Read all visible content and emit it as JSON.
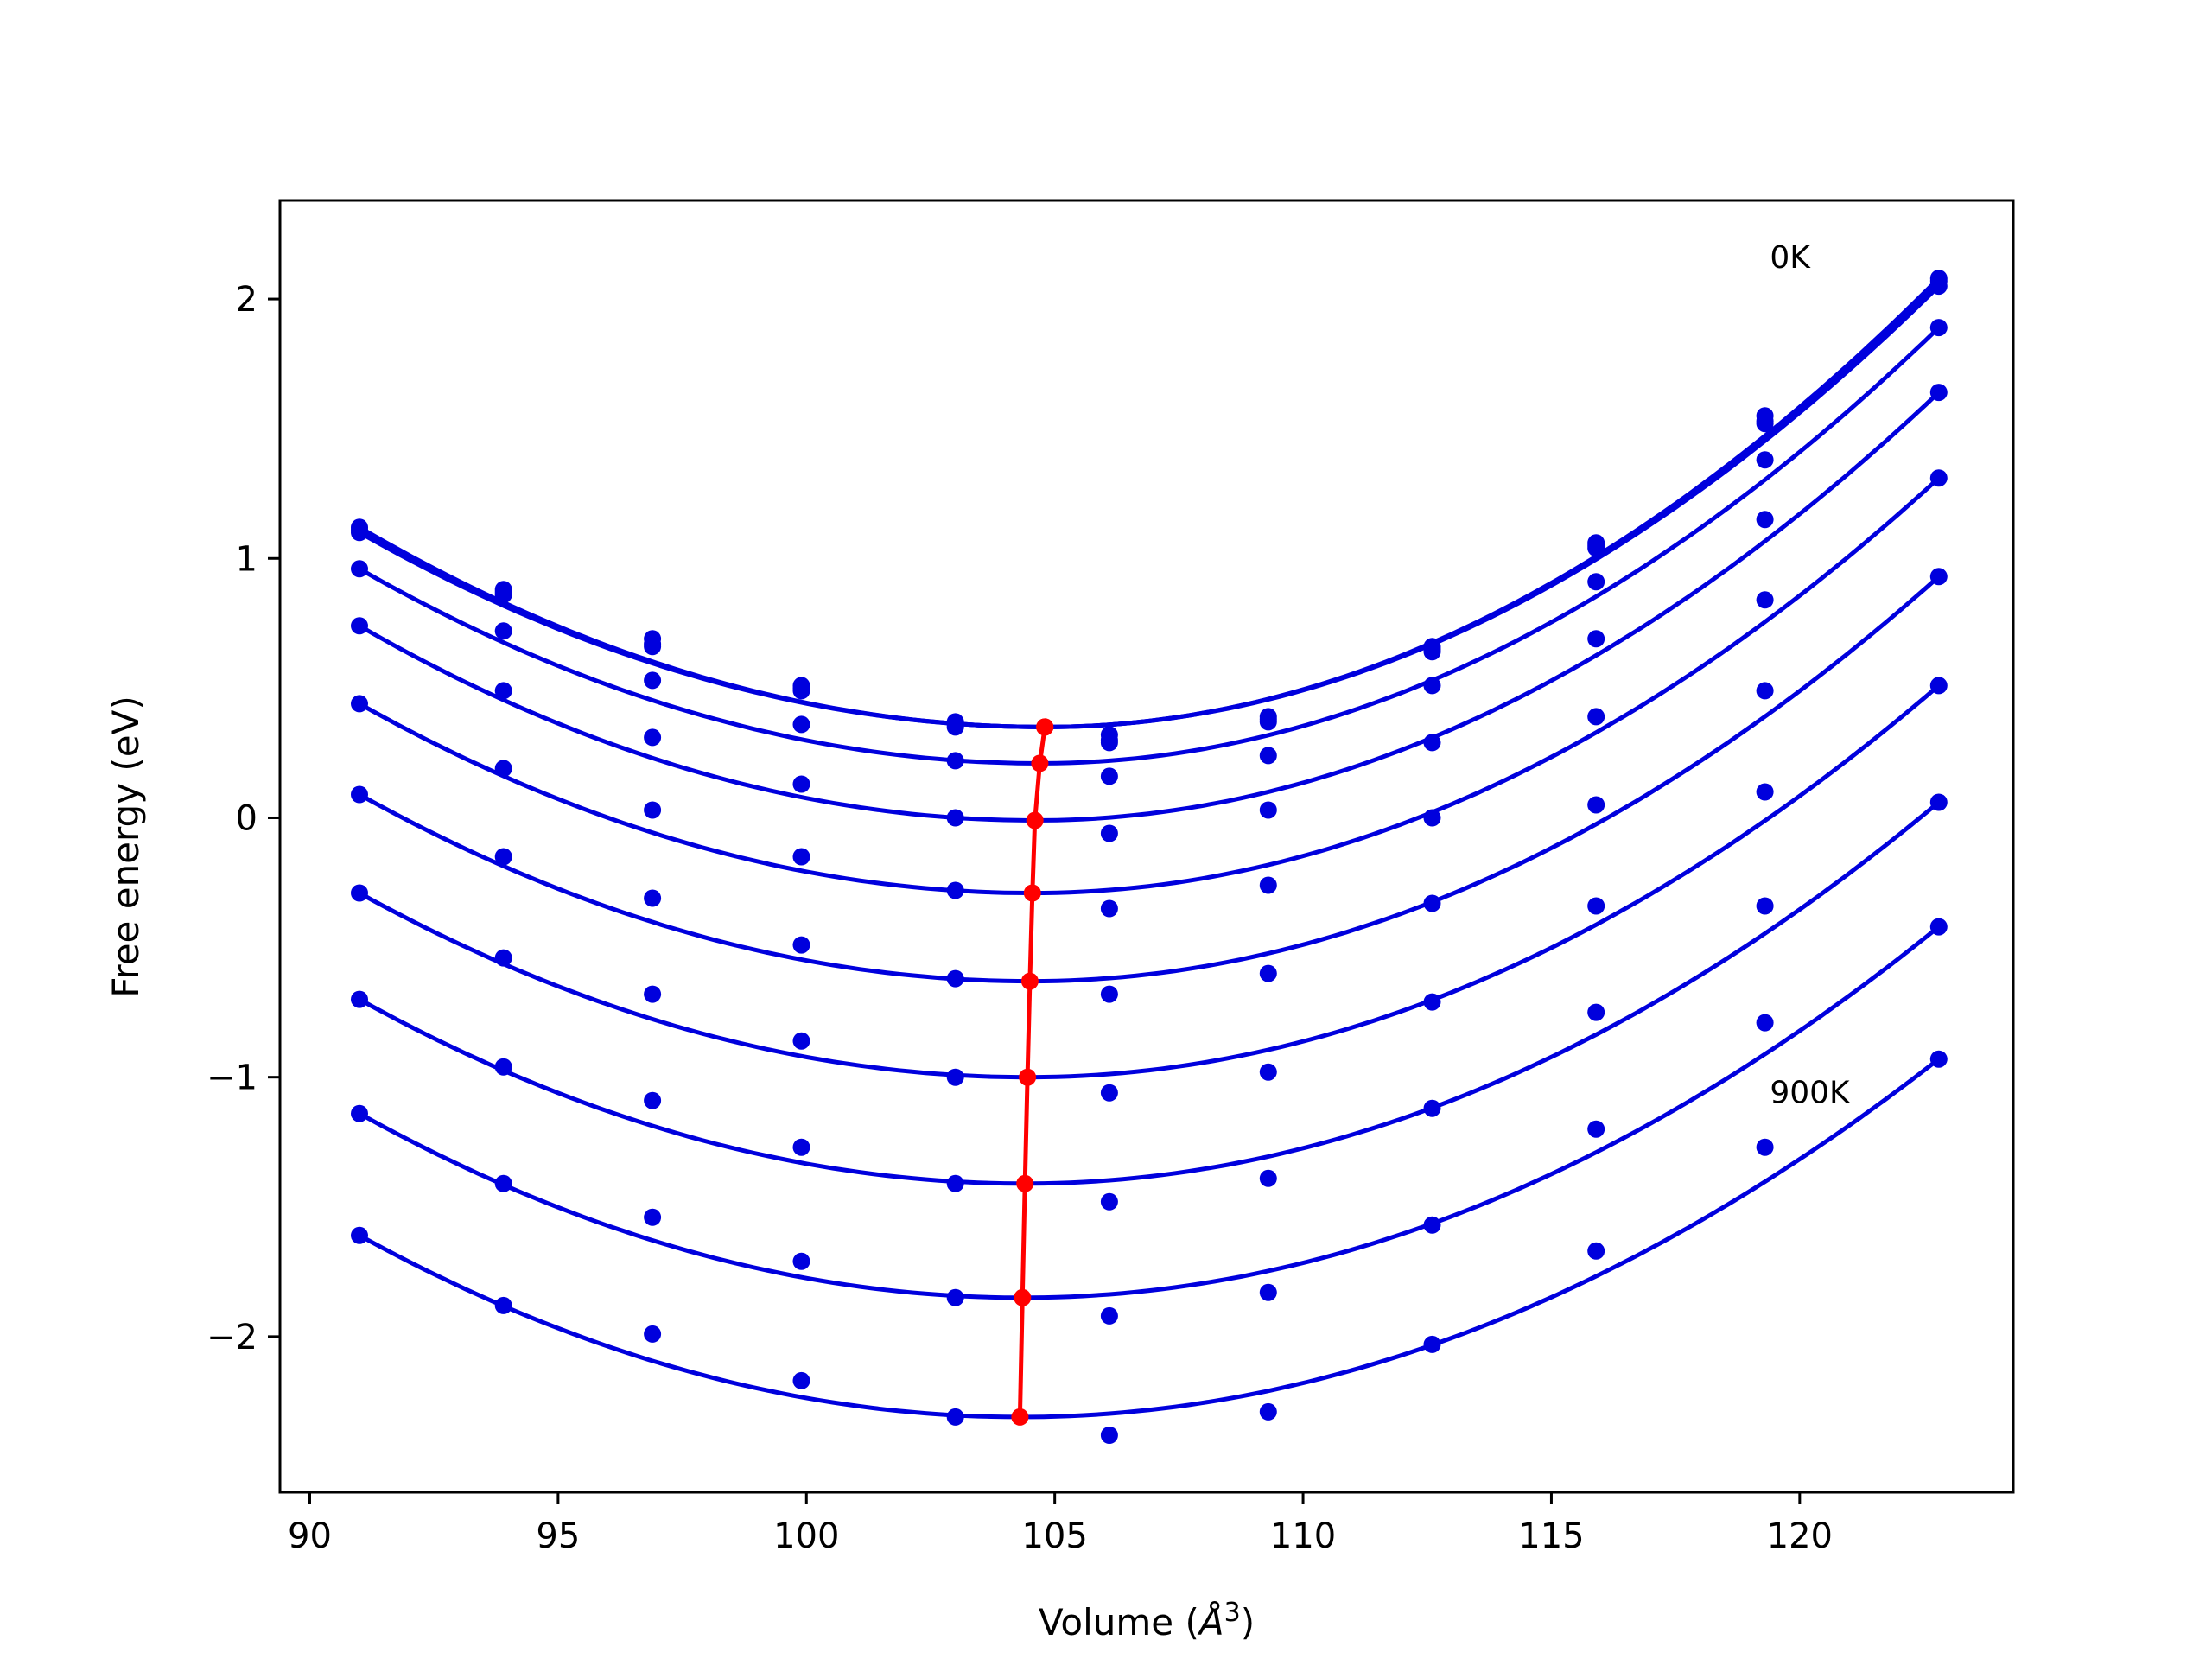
{
  "chart_data": {
    "type": "line",
    "xlabel": "Volume (",
    "xlabel_unit": "Å",
    "xlabel_exp": "3",
    "xlabel_close": ")",
    "ylabel": "Free energy (eV)",
    "xlim": [
      89.4,
      124.3
    ],
    "ylim": [
      -2.6,
      2.38
    ],
    "xticks": [
      90,
      95,
      100,
      105,
      110,
      115,
      120
    ],
    "yticks": [
      -2,
      -1,
      0,
      1,
      2
    ],
    "ytick_labels": [
      "−2",
      "−1",
      "0",
      "1",
      "2"
    ],
    "grid": false,
    "x": [
      91.0,
      93.9,
      96.9,
      99.9,
      103.0,
      106.1,
      109.3,
      112.6,
      115.9,
      119.3,
      122.8
    ],
    "annotations": [
      {
        "text": "0K",
        "x": 119.4,
        "y": 2.16
      },
      {
        "text": "900K",
        "x": 119.4,
        "y": -1.06
      }
    ],
    "curve_color": "#0000dd",
    "minimum_color": "#ff0000",
    "series": [
      {
        "x0": 104.8,
        "emin": 0.35,
        "points": [
          1.12,
          0.88,
          0.69,
          0.51,
          0.37,
          0.32,
          0.39,
          0.66,
          1.06,
          1.55,
          2.08
        ]
      },
      {
        "x0": 104.8,
        "emin": 0.35,
        "points": [
          1.11,
          0.87,
          0.67,
          0.5,
          0.36,
          0.3,
          0.37,
          0.65,
          1.05,
          1.53,
          2.07
        ]
      },
      {
        "x0": 104.8,
        "emin": 0.35,
        "points": [
          1.1,
          0.86,
          0.66,
          0.49,
          0.35,
          0.29,
          0.38,
          0.64,
          1.04,
          1.52,
          2.05
        ]
      },
      {
        "x0": 104.7,
        "emin": 0.21,
        "points": [
          0.96,
          0.72,
          0.53,
          0.36,
          0.22,
          0.16,
          0.24,
          0.51,
          0.91,
          1.38,
          1.89
        ]
      },
      {
        "x0": 104.6,
        "emin": -0.01,
        "points": [
          0.74,
          0.49,
          0.31,
          0.13,
          0.0,
          -0.06,
          0.03,
          0.29,
          0.69,
          1.15,
          1.64
        ]
      },
      {
        "x0": 104.55,
        "emin": -0.29,
        "points": [
          0.44,
          0.19,
          0.03,
          -0.15,
          -0.28,
          -0.35,
          -0.26,
          0.0,
          0.39,
          0.84,
          1.31
        ]
      },
      {
        "x0": 104.5,
        "emin": -0.63,
        "points": [
          0.09,
          -0.15,
          -0.31,
          -0.49,
          -0.62,
          -0.68,
          -0.6,
          -0.33,
          0.05,
          0.49,
          0.93
        ]
      },
      {
        "x0": 104.45,
        "emin": -1.0,
        "points": [
          -0.29,
          -0.54,
          -0.68,
          -0.86,
          -1.0,
          -1.06,
          -0.98,
          -0.71,
          -0.34,
          0.1,
          0.51
        ]
      },
      {
        "x0": 104.4,
        "emin": -1.41,
        "points": [
          -0.7,
          -0.96,
          -1.09,
          -1.27,
          -1.41,
          -1.48,
          -1.39,
          -1.12,
          -0.75,
          -0.34,
          0.06
        ]
      },
      {
        "x0": 104.35,
        "emin": -1.85,
        "points": [
          -1.14,
          -1.41,
          -1.54,
          -1.71,
          -1.85,
          -1.92,
          -1.83,
          -1.57,
          -1.2,
          -0.79,
          -0.42
        ]
      },
      {
        "x0": 104.3,
        "emin": -2.31,
        "points": [
          -1.61,
          -1.88,
          -1.99,
          -2.17,
          -2.31,
          -2.38,
          -2.29,
          -2.03,
          -1.67,
          -1.27,
          -0.93
        ]
      }
    ]
  }
}
